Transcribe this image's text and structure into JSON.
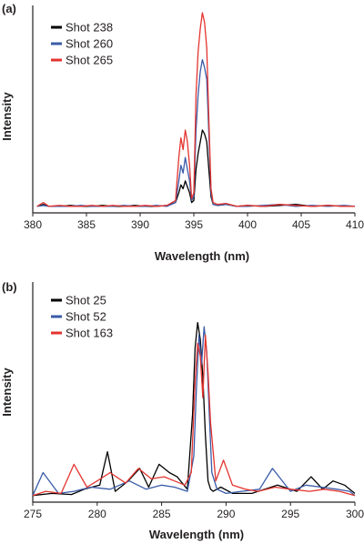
{
  "chart_data": [
    {
      "type": "line",
      "panel_label": "(a)",
      "xlabel": "Wavelength (nm)",
      "ylabel": "Intensity",
      "xlim": [
        380,
        410
      ],
      "ylim": [
        0,
        100
      ],
      "xticks": [
        380,
        385,
        390,
        395,
        400,
        405,
        410
      ],
      "xtick_labels": [
        "380",
        "385",
        "390",
        "395",
        "400",
        "405",
        "410"
      ],
      "legend_position": "top-left",
      "grid": false,
      "series": [
        {
          "name": "Shot 238",
          "color": "#000000",
          "x": [
            380.4,
            381.0,
            381.5,
            382.5,
            383.5,
            384.5,
            385.5,
            386.5,
            387.5,
            388.5,
            389.5,
            390.5,
            391.5,
            392.5,
            393.3,
            393.6,
            393.8,
            394.0,
            394.2,
            394.4,
            394.6,
            394.8,
            395.0,
            395.2,
            395.4,
            395.6,
            395.8,
            396.0,
            396.2,
            396.4,
            396.6,
            396.8,
            397.2,
            398.0,
            399.0,
            400.0,
            401.5,
            403.0,
            404.5,
            406.0,
            407.5,
            409.0,
            410.0
          ],
          "y": [
            1,
            2,
            1,
            1,
            1.5,
            1,
            1,
            1.5,
            1,
            1,
            1.5,
            1,
            1,
            1.5,
            3,
            8,
            12,
            10,
            14,
            11,
            8,
            3,
            4,
            20,
            28,
            34,
            40,
            38,
            34,
            20,
            6,
            2,
            1.5,
            2,
            1,
            1.5,
            1,
            1.5,
            2,
            1,
            1.5,
            1,
            1
          ]
        },
        {
          "name": "Shot 260",
          "color": "#3a5ba8",
          "x": [
            380.4,
            381.0,
            381.5,
            382.5,
            383.5,
            384.5,
            385.5,
            386.5,
            387.5,
            388.5,
            389.5,
            390.5,
            391.5,
            392.5,
            393.3,
            393.6,
            393.8,
            394.0,
            394.2,
            394.4,
            394.6,
            394.8,
            395.0,
            395.2,
            395.4,
            395.6,
            395.8,
            396.0,
            396.2,
            396.4,
            396.6,
            396.8,
            397.2,
            398.0,
            399.0,
            400.0,
            401.5,
            403.0,
            404.5,
            406.0,
            407.5,
            409.0,
            410.0
          ],
          "y": [
            1,
            1.5,
            1,
            1,
            1,
            1.5,
            1,
            1,
            1,
            1.5,
            1,
            1,
            1.5,
            1,
            3,
            14,
            22,
            18,
            26,
            20,
            14,
            4,
            6,
            40,
            58,
            70,
            76,
            72,
            66,
            38,
            8,
            2,
            1.5,
            2,
            1,
            1,
            1.5,
            2,
            1,
            1.5,
            1,
            1.5,
            1
          ]
        },
        {
          "name": "Shot 265",
          "color": "#e3342f",
          "x": [
            380.4,
            381.0,
            381.5,
            382.5,
            383.5,
            384.5,
            385.5,
            386.5,
            387.5,
            388.5,
            389.5,
            390.5,
            391.5,
            392.5,
            393.3,
            393.6,
            393.8,
            394.0,
            394.2,
            394.4,
            394.6,
            394.8,
            395.0,
            395.2,
            395.4,
            395.6,
            395.8,
            396.0,
            396.2,
            396.4,
            396.6,
            396.8,
            397.2,
            398.0,
            399.0,
            400.0,
            401.5,
            403.0,
            404.5,
            406.0,
            407.5,
            409.0,
            410.0
          ],
          "y": [
            1,
            3,
            1,
            1.5,
            1,
            1,
            1.5,
            1,
            1.5,
            1,
            1,
            1.5,
            1,
            1.5,
            4,
            26,
            36,
            30,
            40,
            34,
            22,
            5,
            8,
            58,
            80,
            92,
            100,
            95,
            82,
            46,
            10,
            3,
            2,
            2.5,
            1,
            1.5,
            1,
            2,
            1.5,
            1,
            1.5,
            1,
            1
          ]
        }
      ]
    },
    {
      "type": "line",
      "panel_label": "(b)",
      "xlabel": "Wavelength (nm)",
      "ylabel": "Intensity",
      "xlim": [
        275,
        300
      ],
      "ylim": [
        0,
        100
      ],
      "xticks": [
        275,
        280,
        285,
        290,
        295,
        300
      ],
      "xtick_labels": [
        "275",
        "280",
        "285",
        "290",
        "295",
        "300"
      ],
      "legend_position": "top-left",
      "grid": false,
      "series": [
        {
          "name": "Shot 25",
          "color": "#000000",
          "x": [
            275.0,
            276.5,
            278.0,
            279.0,
            280.2,
            280.8,
            281.4,
            282.4,
            283.3,
            284.0,
            284.8,
            285.6,
            286.2,
            287.0,
            287.4,
            287.6,
            287.8,
            288.0,
            288.2,
            288.4,
            288.6,
            288.8,
            289.0,
            289.6,
            290.5,
            292.0,
            294.0,
            295.5,
            296.6,
            297.5,
            298.3,
            299.2,
            300.0
          ],
          "y": [
            1,
            2,
            1.5,
            4,
            6,
            22,
            3,
            8,
            14,
            5,
            16,
            12,
            10,
            4,
            40,
            72,
            84,
            76,
            58,
            30,
            8,
            4,
            3,
            5,
            2,
            2,
            6,
            3,
            10,
            4,
            8,
            6,
            2
          ]
        },
        {
          "name": "Shot 52",
          "color": "#3a5ba8",
          "x": [
            275.0,
            275.8,
            277.0,
            278.2,
            279.5,
            281.0,
            282.5,
            283.8,
            285.0,
            286.0,
            287.0,
            287.5,
            287.7,
            287.9,
            288.1,
            288.3,
            288.5,
            288.7,
            288.9,
            289.3,
            290.0,
            291.2,
            292.6,
            293.6,
            295.0,
            296.2,
            297.4,
            298.6,
            299.6,
            300.0
          ],
          "y": [
            1,
            12,
            2,
            3,
            5,
            4,
            8,
            4,
            6,
            5,
            3,
            20,
            52,
            78,
            64,
            82,
            70,
            40,
            12,
            4,
            2,
            3,
            4,
            14,
            3,
            6,
            5,
            4,
            3,
            1
          ]
        },
        {
          "name": "Shot 163",
          "color": "#e3342f",
          "x": [
            275.0,
            276.0,
            277.2,
            278.2,
            279.2,
            280.0,
            281.0,
            282.2,
            283.2,
            284.2,
            285.2,
            286.0,
            286.8,
            287.3,
            287.6,
            287.8,
            288.0,
            288.2,
            288.4,
            288.6,
            288.8,
            289.2,
            289.8,
            290.5,
            291.5,
            292.5,
            293.8,
            295.0,
            296.5,
            297.6,
            298.8,
            300.0
          ],
          "y": [
            1,
            3,
            2,
            16,
            5,
            8,
            12,
            7,
            14,
            9,
            10,
            8,
            6,
            12,
            56,
            74,
            68,
            48,
            78,
            60,
            36,
            8,
            18,
            6,
            4,
            3,
            5,
            4,
            3,
            4,
            3,
            1
          ]
        }
      ]
    }
  ]
}
